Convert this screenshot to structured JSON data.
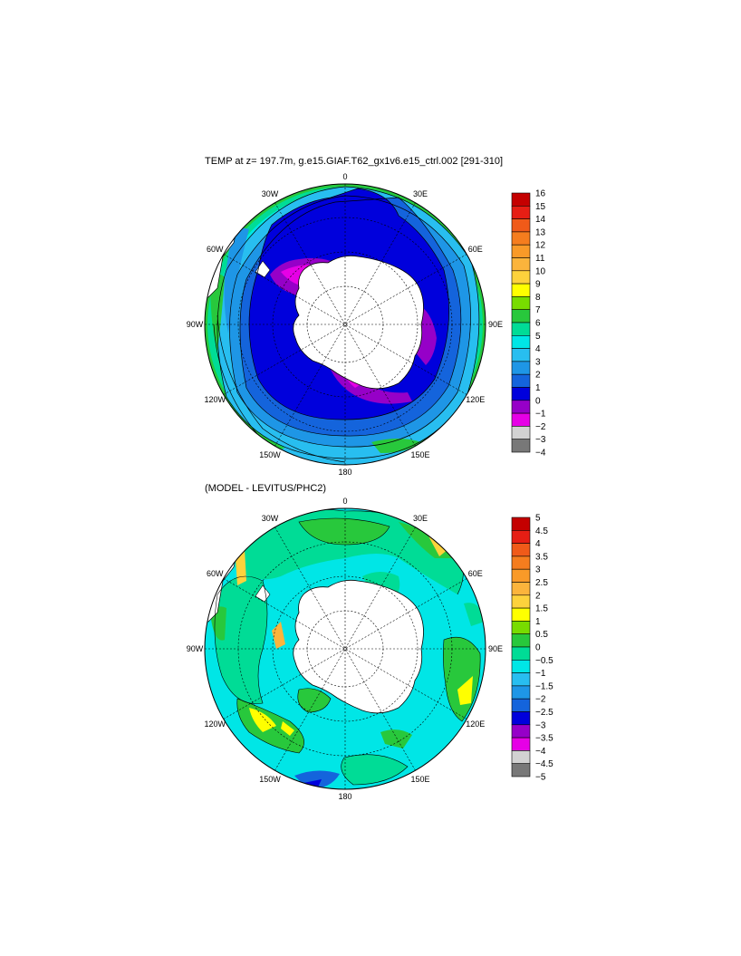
{
  "panels": [
    {
      "title": "TEMP at z= 197.7m, g.e15.GIAF.T62_gx1v6.e15_ctrl.002 [291-310]",
      "colorbar": {
        "labels": [
          "16",
          "15",
          "14",
          "13",
          "12",
          "11",
          "10",
          "9",
          "8",
          "7",
          "6",
          "5",
          "4",
          "3",
          "2",
          "1",
          "0",
          "−1",
          "−2",
          "−3",
          "−4"
        ],
        "colors": [
          "#c40000",
          "#e61e14",
          "#f05a19",
          "#f57d1e",
          "#f99a28",
          "#fbb43c",
          "#fdd23c",
          "#ffff00",
          "#78dc00",
          "#28c83c",
          "#00dc96",
          "#00e6e6",
          "#28bef0",
          "#1e96e6",
          "#1464dc",
          "#0000dc",
          "#9600c8",
          "#e600e6",
          "#d2d2d2",
          "#787878"
        ]
      },
      "lon_labels": [
        "0",
        "30E",
        "60E",
        "90E",
        "120E",
        "150E",
        "180",
        "150W",
        "120W",
        "90W",
        "60W",
        "30W"
      ]
    },
    {
      "title": "(MODEL - LEVITUS/PHC2)",
      "colorbar": {
        "labels": [
          "5",
          "4.5",
          "4",
          "3.5",
          "3",
          "2.5",
          "2",
          "1.5",
          "1",
          "0.5",
          "0",
          "−0.5",
          "−1",
          "−1.5",
          "−2",
          "−2.5",
          "−3",
          "−3.5",
          "−4",
          "−4.5",
          "−5"
        ],
        "colors": [
          "#c40000",
          "#e61e14",
          "#f05a19",
          "#f57d1e",
          "#f99a28",
          "#fbb43c",
          "#fdd23c",
          "#ffff00",
          "#78dc00",
          "#28c83c",
          "#00dc96",
          "#00e6e6",
          "#28bef0",
          "#1e96e6",
          "#1464dc",
          "#0000dc",
          "#9600c8",
          "#e600e6",
          "#d2d2d2",
          "#787878"
        ]
      },
      "lon_labels": [
        "0",
        "30E",
        "60E",
        "90E",
        "120E",
        "150E",
        "180",
        "150W",
        "120W",
        "90W",
        "60W",
        "30W"
      ]
    }
  ]
}
